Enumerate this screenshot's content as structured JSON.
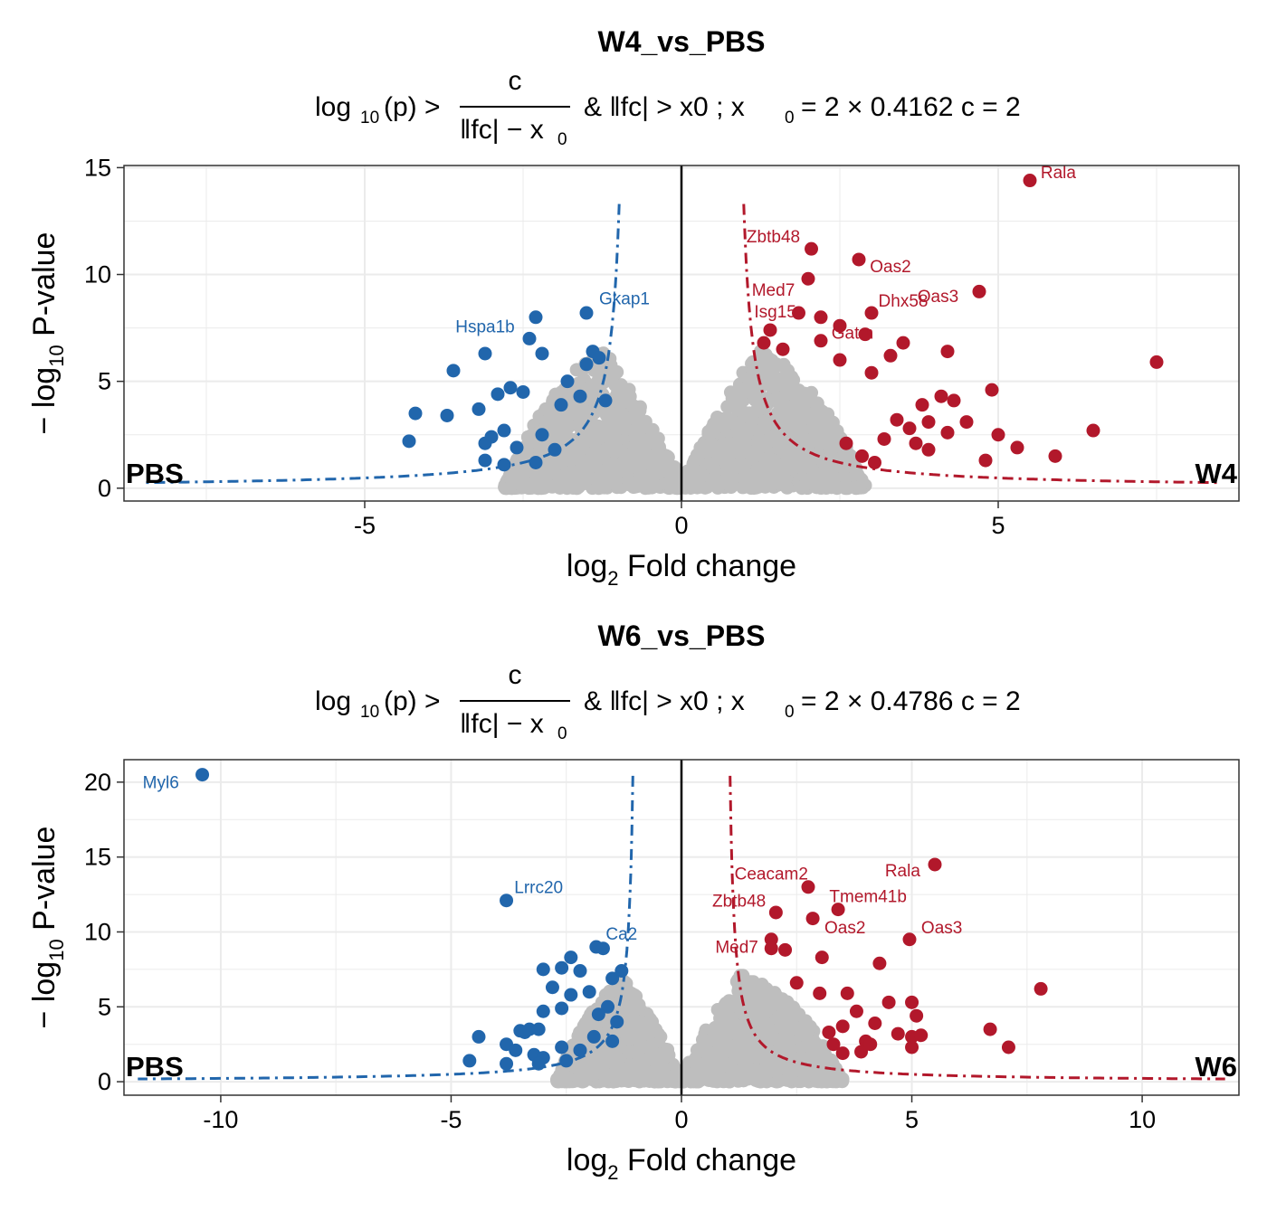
{
  "colors": {
    "down": "#2166ac",
    "up": "#b2182b",
    "ns": "#bebebe",
    "grid": "#ebebeb",
    "panel_border": "#333333"
  },
  "chart_data": [
    {
      "type": "scatter",
      "title": "W4_vs_PBS",
      "formula": {
        "c": "c",
        "lhs": "log",
        "lhs_sub": "10",
        "lhs_arg": "(p) >",
        "denominator": "‖fc| − x",
        "denominator_sub": "0",
        "rhs": "& ‖fc| > x0  ;  x",
        "rhs_sub": "0",
        "rhs_tail": "= 2 × 0.4162  c = 2"
      },
      "xlabel": {
        "main": "log",
        "sub": "2",
        "rest": " Fold change"
      },
      "ylabel": {
        "pre": "− log",
        "sub": "10",
        "rest": "  P-value"
      },
      "xlim": [
        -8.8,
        8.8
      ],
      "ylim": [
        -0.6,
        15.1
      ],
      "xticks": [
        -5,
        0,
        5
      ],
      "xtick_labels": [
        "-5",
        "0",
        "5"
      ],
      "yticks": [
        0,
        5,
        10,
        15
      ],
      "ytick_labels": [
        "0",
        "5",
        "10",
        "15"
      ],
      "x0": 0.8324,
      "c": 2,
      "left_label": "PBS",
      "right_label": "W4",
      "threshold_ymax": 14,
      "ns_cloud": {
        "down_edge_x": -1.0,
        "up_edge_x": 1.0,
        "max_y": 7.0,
        "min_x": -2.8,
        "max_x": 2.9
      },
      "up_points": [
        [
          5.5,
          14.4
        ],
        [
          2.05,
          11.2
        ],
        [
          2.8,
          10.7
        ],
        [
          2.0,
          9.8
        ],
        [
          4.7,
          9.2
        ],
        [
          1.85,
          8.2
        ],
        [
          2.2,
          8.0
        ],
        [
          3.0,
          8.2
        ],
        [
          1.4,
          7.4
        ],
        [
          2.2,
          6.9
        ],
        [
          2.5,
          7.6
        ],
        [
          2.9,
          7.2
        ],
        [
          3.5,
          6.8
        ],
        [
          4.2,
          6.4
        ],
        [
          1.3,
          6.8
        ],
        [
          1.6,
          6.5
        ],
        [
          2.5,
          6.0
        ],
        [
          3.3,
          6.2
        ],
        [
          7.5,
          5.9
        ],
        [
          3.0,
          5.4
        ],
        [
          4.9,
          4.6
        ],
        [
          3.8,
          3.9
        ],
        [
          4.1,
          4.3
        ],
        [
          4.3,
          4.1
        ],
        [
          3.4,
          3.2
        ],
        [
          3.9,
          3.1
        ],
        [
          4.5,
          3.1
        ],
        [
          6.5,
          2.7
        ],
        [
          4.2,
          2.6
        ],
        [
          5.0,
          2.5
        ],
        [
          3.6,
          2.8
        ],
        [
          5.3,
          1.9
        ],
        [
          5.9,
          1.5
        ],
        [
          3.9,
          1.8
        ],
        [
          3.7,
          2.1
        ],
        [
          4.8,
          1.3
        ],
        [
          3.05,
          1.2
        ],
        [
          2.85,
          1.5
        ],
        [
          2.6,
          2.1
        ],
        [
          3.2,
          2.3
        ]
      ],
      "down_points": [
        [
          -1.5,
          8.2
        ],
        [
          -2.3,
          8.0
        ],
        [
          -2.4,
          7.0
        ],
        [
          -3.1,
          6.3
        ],
        [
          -2.2,
          6.3
        ],
        [
          -1.4,
          6.4
        ],
        [
          -1.3,
          6.1
        ],
        [
          -1.5,
          5.8
        ],
        [
          -3.6,
          5.5
        ],
        [
          -4.2,
          3.5
        ],
        [
          -3.7,
          3.4
        ],
        [
          -4.3,
          2.2
        ],
        [
          -3.2,
          3.7
        ],
        [
          -2.7,
          4.7
        ],
        [
          -2.9,
          4.4
        ],
        [
          -2.5,
          4.5
        ],
        [
          -3.0,
          2.4
        ],
        [
          -2.8,
          2.7
        ],
        [
          -3.1,
          2.1
        ],
        [
          -2.6,
          1.9
        ],
        [
          -3.1,
          1.3
        ],
        [
          -2.8,
          1.1
        ],
        [
          -2.3,
          1.2
        ],
        [
          -2.0,
          1.8
        ],
        [
          -2.2,
          2.5
        ],
        [
          -1.9,
          3.9
        ],
        [
          -1.6,
          4.3
        ],
        [
          -1.8,
          5.0
        ],
        [
          -1.2,
          4.1
        ]
      ],
      "labels": [
        {
          "name": "Rala",
          "x": 5.5,
          "y": 14.4,
          "lx": 5.67,
          "ly": 14.5,
          "anchor": "start",
          "group": "up"
        },
        {
          "name": "Zbtb48",
          "x": 2.05,
          "y": 11.2,
          "lx": 1.45,
          "ly": 11.5,
          "anchor": "middle",
          "group": "up"
        },
        {
          "name": "Oas2",
          "x": 2.8,
          "y": 10.7,
          "lx": 3.3,
          "ly": 10.1,
          "anchor": "middle",
          "group": "up"
        },
        {
          "name": "Med7",
          "x": 1.85,
          "y": 8.2,
          "lx": 1.45,
          "ly": 9.0,
          "anchor": "middle",
          "group": "up"
        },
        {
          "name": "Dhx58",
          "x": 3.0,
          "y": 8.2,
          "lx": 3.5,
          "ly": 8.5,
          "anchor": "middle",
          "group": "up"
        },
        {
          "name": "Oas3",
          "x": 4.7,
          "y": 9.2,
          "lx": 4.05,
          "ly": 8.7,
          "anchor": "middle",
          "group": "up"
        },
        {
          "name": "Isg15",
          "x": 2.2,
          "y": 8.0,
          "lx": 1.48,
          "ly": 8.0,
          "anchor": "middle",
          "group": "up"
        },
        {
          "name": "Gatm",
          "x": 2.5,
          "y": 7.6,
          "lx": 2.7,
          "ly": 7.0,
          "anchor": "middle",
          "group": "up"
        },
        {
          "name": "Gkap1",
          "x": -1.5,
          "y": 8.2,
          "lx": -0.9,
          "ly": 8.6,
          "anchor": "middle",
          "group": "down"
        },
        {
          "name": "Hspa1b",
          "x": -2.4,
          "y": 7.0,
          "lx": -3.1,
          "ly": 7.3,
          "anchor": "middle",
          "group": "down"
        }
      ]
    },
    {
      "type": "scatter",
      "title": "W6_vs_PBS",
      "formula": {
        "c": "c",
        "lhs": "log",
        "lhs_sub": "10",
        "lhs_arg": "(p) >",
        "denominator": "‖fc| − x",
        "denominator_sub": "0",
        "rhs": "& ‖fc| > x0  ;  x",
        "rhs_sub": "0",
        "rhs_tail": "= 2 × 0.4786  c = 2"
      },
      "xlabel": {
        "main": "log",
        "sub": "2",
        "rest": " Fold change"
      },
      "ylabel": {
        "pre": "− log",
        "sub": "10",
        "rest": "  P-value"
      },
      "xlim": [
        -12.1,
        12.1
      ],
      "ylim": [
        -0.9,
        21.5
      ],
      "xticks": [
        -10,
        -5,
        0,
        5,
        10
      ],
      "xtick_labels": [
        "-10",
        "-5",
        "0",
        "5",
        "10"
      ],
      "yticks": [
        0,
        5,
        10,
        15,
        20
      ],
      "ytick_labels": [
        "0",
        "5",
        "10",
        "15",
        "20"
      ],
      "x0": 0.9572,
      "c": 2,
      "left_label": "PBS",
      "right_label": "W6",
      "threshold_ymax": 21.5,
      "ns_cloud": {
        "down_edge_x": -1.1,
        "up_edge_x": 1.1,
        "max_y": 7.5,
        "min_x": -2.7,
        "max_x": 3.5
      },
      "up_points": [
        [
          5.5,
          14.5
        ],
        [
          2.75,
          13.0
        ],
        [
          3.4,
          11.5
        ],
        [
          2.05,
          11.3
        ],
        [
          2.85,
          10.9
        ],
        [
          4.95,
          9.5
        ],
        [
          1.95,
          9.5
        ],
        [
          2.25,
          8.8
        ],
        [
          1.95,
          8.9
        ],
        [
          3.05,
          8.3
        ],
        [
          4.3,
          7.9
        ],
        [
          7.8,
          6.2
        ],
        [
          2.5,
          6.6
        ],
        [
          3.0,
          5.9
        ],
        [
          3.6,
          5.9
        ],
        [
          4.5,
          5.3
        ],
        [
          5.0,
          5.3
        ],
        [
          5.1,
          4.4
        ],
        [
          3.8,
          4.7
        ],
        [
          4.2,
          3.9
        ],
        [
          3.5,
          3.7
        ],
        [
          3.2,
          3.3
        ],
        [
          6.7,
          3.5
        ],
        [
          5.0,
          3.0
        ],
        [
          5.2,
          3.1
        ],
        [
          4.7,
          3.2
        ],
        [
          7.1,
          2.3
        ],
        [
          4.0,
          2.7
        ],
        [
          3.9,
          2.0
        ],
        [
          5.0,
          2.3
        ],
        [
          4.1,
          2.5
        ],
        [
          3.3,
          2.5
        ],
        [
          3.5,
          1.9
        ]
      ],
      "down_points": [
        [
          -10.4,
          20.5
        ],
        [
          -3.8,
          12.1
        ],
        [
          -1.85,
          9.0
        ],
        [
          -1.7,
          8.9
        ],
        [
          -2.4,
          8.3
        ],
        [
          -2.6,
          7.6
        ],
        [
          -3.0,
          7.5
        ],
        [
          -2.2,
          7.4
        ],
        [
          -1.3,
          7.4
        ],
        [
          -1.5,
          6.9
        ],
        [
          -2.8,
          6.3
        ],
        [
          -2.0,
          6.0
        ],
        [
          -2.4,
          5.8
        ],
        [
          -3.0,
          4.7
        ],
        [
          -2.6,
          4.9
        ],
        [
          -3.4,
          3.3
        ],
        [
          -3.5,
          3.4
        ],
        [
          -3.3,
          3.5
        ],
        [
          -3.1,
          3.5
        ],
        [
          -4.4,
          3.0
        ],
        [
          -3.8,
          2.5
        ],
        [
          -4.6,
          1.4
        ],
        [
          -3.8,
          1.2
        ],
        [
          -3.6,
          2.1
        ],
        [
          -3.2,
          1.8
        ],
        [
          -3.0,
          1.6
        ],
        [
          -3.1,
          1.2
        ],
        [
          -2.6,
          2.3
        ],
        [
          -2.2,
          2.1
        ],
        [
          -2.5,
          1.4
        ],
        [
          -1.5,
          2.7
        ],
        [
          -1.9,
          3.0
        ],
        [
          -1.4,
          4.0
        ],
        [
          -1.6,
          5.0
        ],
        [
          -1.8,
          4.5
        ]
      ],
      "labels": [
        {
          "name": "Myl6",
          "x": -10.4,
          "y": 20.5,
          "lx": -11.3,
          "ly": 19.6,
          "anchor": "middle",
          "group": "down"
        },
        {
          "name": "Lrrc20",
          "x": -3.8,
          "y": 12.1,
          "lx": -3.1,
          "ly": 12.6,
          "anchor": "middle",
          "group": "down"
        },
        {
          "name": "Ca2",
          "x": -1.85,
          "y": 9.0,
          "lx": -1.3,
          "ly": 9.5,
          "anchor": "middle",
          "group": "down"
        },
        {
          "name": "Rala",
          "x": 5.5,
          "y": 14.5,
          "lx": 4.8,
          "ly": 13.7,
          "anchor": "middle",
          "group": "up"
        },
        {
          "name": "Ceacam2",
          "x": 2.75,
          "y": 13.0,
          "lx": 1.95,
          "ly": 13.5,
          "anchor": "middle",
          "group": "up"
        },
        {
          "name": "Tmem41b",
          "x": 3.4,
          "y": 11.5,
          "lx": 4.05,
          "ly": 12.0,
          "anchor": "middle",
          "group": "up"
        },
        {
          "name": "Zbtb48",
          "x": 2.05,
          "y": 11.3,
          "lx": 1.25,
          "ly": 11.7,
          "anchor": "middle",
          "group": "up"
        },
        {
          "name": "Oas2",
          "x": 2.85,
          "y": 10.9,
          "lx": 3.55,
          "ly": 9.9,
          "anchor": "middle",
          "group": "up"
        },
        {
          "name": "Oas3",
          "x": 4.95,
          "y": 9.5,
          "lx": 5.65,
          "ly": 9.9,
          "anchor": "middle",
          "group": "up"
        },
        {
          "name": "Med7",
          "x": 1.95,
          "y": 8.9,
          "lx": 1.2,
          "ly": 8.6,
          "anchor": "middle",
          "group": "up"
        }
      ]
    }
  ]
}
